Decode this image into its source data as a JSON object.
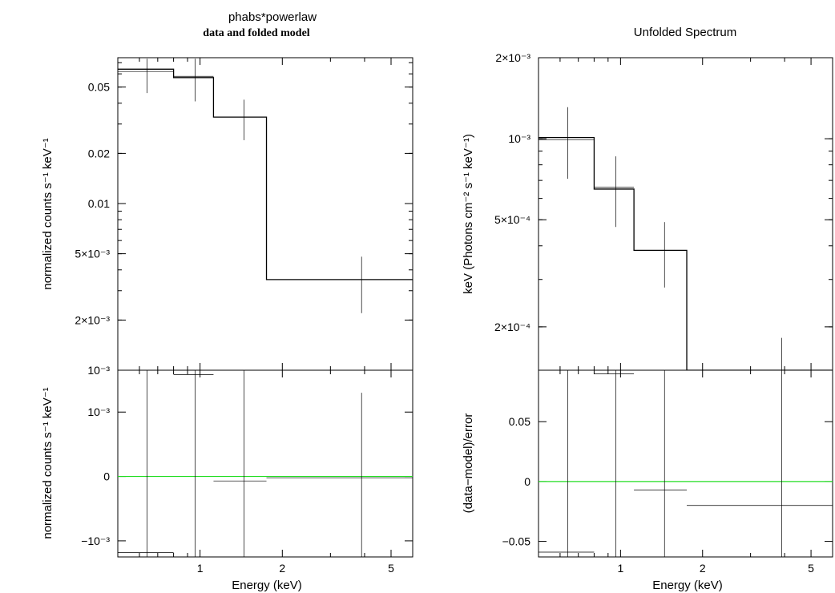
{
  "chart_data": [
    {
      "type": "line",
      "title": "phabs*powerlaw",
      "subtitle": "data and folded model",
      "xlabel": "Energy (keV)",
      "xscale": "log",
      "xlim": [
        0.5,
        6.0
      ],
      "x_ticks": [
        {
          "v": 1,
          "label": "1"
        },
        {
          "v": 2,
          "label": "2"
        },
        {
          "v": 5,
          "label": "5"
        }
      ],
      "top": {
        "ylabel": "normalized counts s⁻¹ keV⁻¹",
        "yscale": "log",
        "ylim": [
          0.001,
          0.075
        ],
        "y_ticks": [
          {
            "v": 0.05,
            "label": "0.05"
          },
          {
            "v": 0.02,
            "label": "0.02"
          },
          {
            "v": 0.01,
            "label": "0.01"
          },
          {
            "v": 0.005,
            "label": "5×10⁻³"
          },
          {
            "v": 0.002,
            "label": "2×10⁻³"
          },
          {
            "v": 0.001,
            "label": "10⁻³"
          }
        ],
        "model": [
          {
            "x0": 0.5,
            "x1": 0.8,
            "y": 0.064
          },
          {
            "x0": 0.8,
            "x1": 1.12,
            "y": 0.057
          },
          {
            "x0": 1.12,
            "x1": 1.75,
            "y": 0.033
          },
          {
            "x0": 1.75,
            "x1": 6.0,
            "y": 0.0035
          }
        ],
        "data": [
          {
            "x": 0.64,
            "xlo": 0.5,
            "xhi": 0.8,
            "y": 0.062,
            "ylo": 0.046,
            "yhi": 0.074
          },
          {
            "x": 0.96,
            "xlo": 0.8,
            "xhi": 1.12,
            "y": 0.058,
            "ylo": 0.041,
            "yhi": 0.074
          },
          {
            "x": 1.45,
            "xlo": 1.12,
            "xhi": 1.75,
            "y": 0.033,
            "ylo": 0.024,
            "yhi": 0.042
          },
          {
            "x": 3.9,
            "xlo": 1.75,
            "xhi": 6.0,
            "y": 0.0035,
            "ylo": 0.0022,
            "yhi": 0.0048
          }
        ]
      },
      "bottom": {
        "ylabel": "normalized counts s⁻¹ keV⁻¹",
        "yscale": "linear",
        "ylim": [
          -0.00125,
          0.00165
        ],
        "y_ticks": [
          {
            "v": 0.001,
            "label": "10⁻³"
          },
          {
            "v": 0,
            "label": "0"
          },
          {
            "v": -0.001,
            "label": "−10⁻³"
          }
        ],
        "data": [
          {
            "x": 0.64,
            "xlo": 0.5,
            "xhi": 0.8,
            "y": -0.00118,
            "ylo": -0.0015,
            "yhi": 0.0017
          },
          {
            "x": 0.96,
            "xlo": 0.8,
            "xhi": 1.12,
            "y": 0.00158,
            "ylo": -0.0015,
            "yhi": 0.0017
          },
          {
            "x": 1.45,
            "xlo": 1.12,
            "xhi": 1.75,
            "y": -7e-05,
            "ylo": -0.0015,
            "yhi": 0.0017
          },
          {
            "x": 3.9,
            "xlo": 1.75,
            "xhi": 6.0,
            "y": -2e-05,
            "ylo": -0.0015,
            "yhi": 0.0013
          }
        ]
      }
    },
    {
      "type": "line",
      "title": "Unfolded Spectrum",
      "xlabel": "Energy (keV)",
      "xscale": "log",
      "xlim": [
        0.5,
        6.0
      ],
      "x_ticks": [
        {
          "v": 1,
          "label": "1"
        },
        {
          "v": 2,
          "label": "2"
        },
        {
          "v": 5,
          "label": "5"
        }
      ],
      "top": {
        "ylabel": "keV (Photons cm⁻² s⁻¹ keV⁻¹)",
        "yscale": "log",
        "ylim": [
          0.000138,
          0.002
        ],
        "y_ticks": [
          {
            "v": 0.002,
            "label": "2×10⁻³"
          },
          {
            "v": 0.001,
            "label": "10⁻³"
          },
          {
            "v": 0.0005,
            "label": "5×10⁻⁴"
          },
          {
            "v": 0.0002,
            "label": "2×10⁻⁴"
          }
        ],
        "model": [
          {
            "x0": 0.5,
            "x1": 0.8,
            "y": 0.00101
          },
          {
            "x0": 0.8,
            "x1": 1.12,
            "y": 0.00065
          },
          {
            "x0": 1.12,
            "x1": 1.75,
            "y": 0.000385
          },
          {
            "x0": 1.75,
            "x1": 6.0,
            "y": 0.000138
          }
        ],
        "data": [
          {
            "x": 0.64,
            "xlo": 0.5,
            "xhi": 0.8,
            "y": 0.00099,
            "ylo": 0.00071,
            "yhi": 0.00131
          },
          {
            "x": 0.96,
            "xlo": 0.8,
            "xhi": 1.12,
            "y": 0.00066,
            "ylo": 0.00047,
            "yhi": 0.00086
          },
          {
            "x": 1.45,
            "xlo": 1.12,
            "xhi": 1.75,
            "y": 0.000385,
            "ylo": 0.00028,
            "yhi": 0.00049
          },
          {
            "x": 3.9,
            "xlo": 1.75,
            "xhi": 6.0,
            "y": 0.000138,
            "ylo": 0.000138,
            "yhi": 0.000182
          }
        ]
      },
      "bottom": {
        "ylabel": "(data−model)/error",
        "yscale": "linear",
        "ylim": [
          -0.063,
          0.093
        ],
        "y_ticks": [
          {
            "v": 0.05,
            "label": "0.05"
          },
          {
            "v": 0,
            "label": "0"
          },
          {
            "v": -0.05,
            "label": "−0.05"
          }
        ],
        "data": [
          {
            "x": 0.64,
            "xlo": 0.5,
            "xhi": 0.8,
            "y": -0.059,
            "ylo": -0.07,
            "yhi": 0.1
          },
          {
            "x": 0.96,
            "xlo": 0.8,
            "xhi": 1.12,
            "y": 0.09,
            "ylo": -0.07,
            "yhi": 0.1
          },
          {
            "x": 1.45,
            "xlo": 1.12,
            "xhi": 1.75,
            "y": -0.007,
            "ylo": -0.07,
            "yhi": 0.1
          },
          {
            "x": 3.9,
            "xlo": 1.75,
            "xhi": 6.0,
            "y": -0.02,
            "ylo": -0.07,
            "yhi": 0.1
          }
        ]
      }
    }
  ]
}
